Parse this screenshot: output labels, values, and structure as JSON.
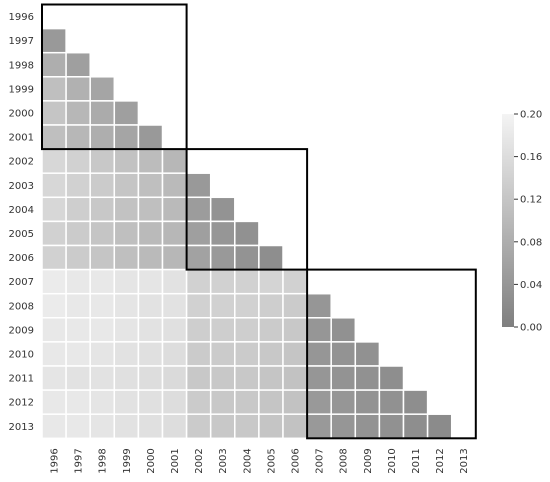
{
  "chart_data": {
    "type": "heatmap",
    "title": "",
    "xlabel": "",
    "ylabel": "",
    "shape": "lower-triangle",
    "years": [
      "1996",
      "1997",
      "1998",
      "1999",
      "2000",
      "2001",
      "2002",
      "2003",
      "2004",
      "2005",
      "2006",
      "2007",
      "2008",
      "2009",
      "2010",
      "2011",
      "2012",
      "2013"
    ],
    "blocks": [
      {
        "from": "1996",
        "to": "2001"
      },
      {
        "from": "2002",
        "to": "2006"
      },
      {
        "from": "2007",
        "to": "2013"
      }
    ],
    "values": [
      [],
      [
        0.045
      ],
      [
        0.08,
        0.055
      ],
      [
        0.11,
        0.085,
        0.065
      ],
      [
        0.12,
        0.095,
        0.075,
        0.055
      ],
      [
        0.11,
        0.095,
        0.08,
        0.065,
        0.045
      ],
      [
        0.15,
        0.14,
        0.125,
        0.115,
        0.105,
        0.095
      ],
      [
        0.15,
        0.14,
        0.13,
        0.12,
        0.11,
        0.1,
        0.045
      ],
      [
        0.15,
        0.135,
        0.125,
        0.115,
        0.11,
        0.1,
        0.05,
        0.035
      ],
      [
        0.14,
        0.13,
        0.12,
        0.11,
        0.1,
        0.095,
        0.055,
        0.04,
        0.03
      ],
      [
        0.14,
        0.13,
        0.12,
        0.11,
        0.1,
        0.095,
        0.06,
        0.045,
        0.035,
        0.025
      ],
      [
        0.185,
        0.18,
        0.18,
        0.175,
        0.175,
        0.17,
        0.14,
        0.14,
        0.14,
        0.145,
        0.14
      ],
      [
        0.185,
        0.18,
        0.18,
        0.175,
        0.17,
        0.17,
        0.14,
        0.14,
        0.14,
        0.135,
        0.13,
        0.04
      ],
      [
        0.18,
        0.18,
        0.18,
        0.175,
        0.17,
        0.165,
        0.135,
        0.135,
        0.135,
        0.13,
        0.125,
        0.04,
        0.03
      ],
      [
        0.18,
        0.18,
        0.175,
        0.17,
        0.165,
        0.16,
        0.13,
        0.13,
        0.13,
        0.125,
        0.12,
        0.04,
        0.035,
        0.03
      ],
      [
        0.175,
        0.17,
        0.17,
        0.165,
        0.16,
        0.155,
        0.125,
        0.125,
        0.125,
        0.12,
        0.115,
        0.04,
        0.035,
        0.03,
        0.025
      ],
      [
        0.18,
        0.18,
        0.175,
        0.17,
        0.165,
        0.16,
        0.13,
        0.125,
        0.125,
        0.12,
        0.115,
        0.045,
        0.04,
        0.035,
        0.03,
        0.025
      ],
      [
        0.18,
        0.18,
        0.175,
        0.17,
        0.165,
        0.16,
        0.13,
        0.125,
        0.125,
        0.12,
        0.115,
        0.045,
        0.04,
        0.035,
        0.03,
        0.025,
        0.02
      ]
    ],
    "colorbar": {
      "min": 0.0,
      "max": 0.2,
      "ticks": [
        0.0,
        0.04,
        0.08,
        0.12,
        0.16,
        0.2
      ],
      "tick_labels": [
        "0.00",
        "0.04",
        "0.08",
        "0.12",
        "0.16",
        "0.20"
      ],
      "color_low": "#7f7f7f",
      "color_high": "#f4f4f4"
    },
    "cell_border_color": "#ffffff",
    "block_border_color": "#000000",
    "grid": false,
    "legend": "colorbar-right"
  }
}
